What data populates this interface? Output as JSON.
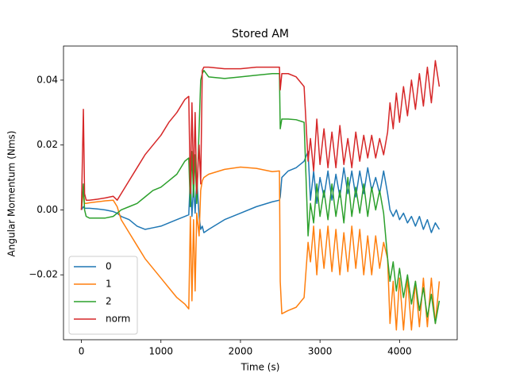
{
  "chart_data": {
    "type": "line",
    "title": "Stored AM",
    "xlabel": "Time (s)",
    "ylabel": "Angular Momentum (Nms)",
    "x": [
      0,
      25,
      40,
      60,
      100,
      200,
      300,
      400,
      450,
      500,
      600,
      700,
      800,
      900,
      1000,
      1100,
      1200,
      1300,
      1350,
      1370,
      1390,
      1410,
      1430,
      1450,
      1480,
      1500,
      1520,
      1540,
      1600,
      1800,
      2000,
      2200,
      2400,
      2490,
      2500,
      2520,
      2600,
      2700,
      2800,
      2850,
      2880,
      2920,
      2960,
      3000,
      3050,
      3100,
      3150,
      3200,
      3250,
      3300,
      3350,
      3400,
      3450,
      3500,
      3550,
      3600,
      3650,
      3700,
      3750,
      3800,
      3850,
      3880,
      3920,
      3960,
      4000,
      4050,
      4100,
      4150,
      4200,
      4250,
      4300,
      4350,
      4400,
      4450,
      4500
    ],
    "series": [
      {
        "name": "0",
        "color": "#1f77b4",
        "values": [
          0,
          0.001,
          0.0005,
          0.0005,
          0.0005,
          0.0003,
          0,
          -0.0005,
          -0.001,
          -0.002,
          -0.003,
          -0.005,
          -0.006,
          -0.0055,
          -0.005,
          -0.004,
          -0.003,
          -0.002,
          -0.0015,
          0.01,
          -0.002,
          0.008,
          -0.001,
          0.01,
          -0.002,
          -0.006,
          -0.005,
          -0.007,
          -0.006,
          -0.003,
          -0.001,
          0.001,
          0.0025,
          0.003,
          0.004,
          0.01,
          0.012,
          0.013,
          0.015,
          0.018,
          0.003,
          0.012,
          0.002,
          0.01,
          0.004,
          0.012,
          0.003,
          0.011,
          0.004,
          0.013,
          0.005,
          0.012,
          0.004,
          0.012,
          0.005,
          0.013,
          0.006,
          0.01,
          0.005,
          0.012,
          0.005,
          0,
          -0.002,
          0,
          -0.003,
          -0.001,
          -0.004,
          -0.002,
          -0.005,
          -0.002,
          -0.006,
          -0.003,
          -0.007,
          -0.004,
          -0.006
        ]
      },
      {
        "name": "1",
        "color": "#ff7f0e",
        "values": [
          0,
          0.006,
          0.002,
          0.002,
          0.0022,
          0.0025,
          0.0028,
          0.003,
          0.001,
          -0.003,
          -0.007,
          -0.011,
          -0.015,
          -0.018,
          -0.021,
          -0.024,
          -0.027,
          -0.029,
          -0.0305,
          -0.002,
          -0.028,
          -0.003,
          -0.025,
          -0.001,
          -0.008,
          0.006,
          0.009,
          0.01,
          0.011,
          0.0125,
          0.0132,
          0.0128,
          0.0118,
          0.012,
          -0.022,
          -0.032,
          -0.031,
          -0.03,
          -0.027,
          -0.01,
          -0.016,
          -0.005,
          -0.02,
          -0.006,
          -0.018,
          -0.005,
          -0.019,
          -0.006,
          -0.02,
          -0.007,
          -0.019,
          -0.005,
          -0.018,
          -0.006,
          -0.02,
          -0.008,
          -0.02,
          -0.008,
          -0.018,
          -0.01,
          -0.015,
          -0.035,
          -0.022,
          -0.037,
          -0.021,
          -0.037,
          -0.021,
          -0.037,
          -0.022,
          -0.036,
          -0.021,
          -0.036,
          -0.021,
          -0.035,
          -0.022
        ]
      },
      {
        "name": "2",
        "color": "#2ca02c",
        "values": [
          0,
          0.008,
          0,
          -0.002,
          -0.0025,
          -0.0025,
          -0.0025,
          -0.002,
          -0.001,
          0,
          0.001,
          0.002,
          0.004,
          0.006,
          0.007,
          0.009,
          0.011,
          0.015,
          0.016,
          0.001,
          0.018,
          0.004,
          0.017,
          0.002,
          0.025,
          0.04,
          0.042,
          0.043,
          0.041,
          0.0405,
          0.041,
          0.0415,
          0.042,
          0.042,
          0.025,
          0.028,
          0.028,
          0.0278,
          0.027,
          -0.008,
          0.002,
          -0.004,
          0.008,
          -0.002,
          0.006,
          -0.003,
          0.008,
          -0.002,
          0.006,
          -0.004,
          0.01,
          -0.002,
          0.007,
          -0.001,
          0.008,
          -0.002,
          0.007,
          0,
          0.006,
          -0.001,
          -0.015,
          -0.022,
          -0.016,
          -0.025,
          -0.018,
          -0.027,
          -0.02,
          -0.029,
          -0.022,
          -0.031,
          -0.024,
          -0.033,
          -0.026,
          -0.035,
          -0.028
        ]
      },
      {
        "name": "norm",
        "color": "#d62728",
        "values": [
          0,
          0.031,
          0.005,
          0.003,
          0.003,
          0.0033,
          0.0037,
          0.0042,
          0.003,
          0.005,
          0.009,
          0.013,
          0.017,
          0.02,
          0.023,
          0.027,
          0.03,
          0.034,
          0.035,
          0.005,
          0.033,
          0.008,
          0.03,
          0.005,
          0.02,
          0.008,
          0.043,
          0.044,
          0.044,
          0.0435,
          0.0435,
          0.044,
          0.044,
          0.044,
          0.037,
          0.042,
          0.042,
          0.041,
          0.038,
          0.015,
          0.022,
          0.012,
          0.028,
          0.014,
          0.025,
          0.013,
          0.024,
          0.013,
          0.026,
          0.014,
          0.022,
          0.013,
          0.024,
          0.015,
          0.023,
          0.016,
          0.023,
          0.016,
          0.022,
          0.017,
          0.024,
          0.033,
          0.025,
          0.036,
          0.027,
          0.038,
          0.029,
          0.04,
          0.031,
          0.042,
          0.032,
          0.044,
          0.033,
          0.046,
          0.038
        ]
      }
    ],
    "xlim": [
      -225,
      4725
    ],
    "ylim": [
      -0.04,
      0.0505
    ],
    "xticks": [
      0,
      1000,
      2000,
      3000,
      4000
    ],
    "yticks": [
      {
        "value": -0.02,
        "label": "−0.02"
      },
      {
        "value": 0,
        "label": "0.00"
      },
      {
        "value": 0.02,
        "label": "0.02"
      },
      {
        "value": 0.04,
        "label": "0.04"
      }
    ],
    "legend": "lower left"
  }
}
